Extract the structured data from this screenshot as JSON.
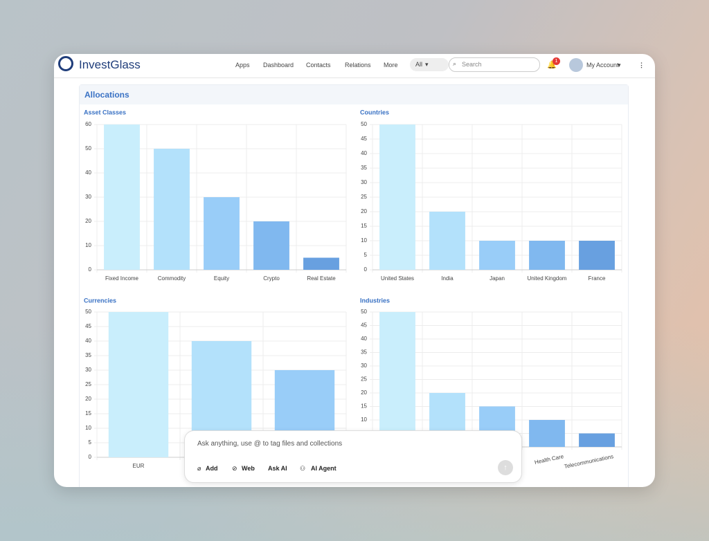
{
  "app": {
    "logo": "InvestGlass",
    "nav": [
      "Apps",
      "Dashboard",
      "Contacts",
      "Relations",
      "More"
    ],
    "filter": "All",
    "search_placeholder": "Search",
    "notification_count": "1",
    "account": "My Account"
  },
  "section_title": "Allocations",
  "chart_data": [
    {
      "type": "bar",
      "title": "Asset Classes",
      "categories": [
        "Fixed Income",
        "Commodity",
        "Equity",
        "Crypto",
        "Real Estate"
      ],
      "values": [
        60,
        50,
        30,
        20,
        5
      ],
      "colors": [
        "#c9eefc",
        "#b3e1fb",
        "#99cdf8",
        "#80b8ef",
        "#68a0e0"
      ],
      "ylim": [
        0,
        60
      ],
      "yticks": [
        0,
        10,
        20,
        30,
        40,
        50,
        60
      ],
      "grid": true
    },
    {
      "type": "bar",
      "title": "Countries",
      "categories": [
        "United States",
        "India",
        "Japan",
        "United Kingdom",
        "France"
      ],
      "values": [
        50,
        20,
        10,
        10,
        10
      ],
      "colors": [
        "#c9eefc",
        "#b3e1fb",
        "#99cdf8",
        "#80b8ef",
        "#68a0e0"
      ],
      "ylim": [
        0,
        50
      ],
      "yticks": [
        0,
        5,
        10,
        15,
        20,
        25,
        30,
        35,
        40,
        45,
        50
      ],
      "grid": true
    },
    {
      "type": "bar",
      "title": "Currencies",
      "categories": [
        "EUR",
        null,
        null
      ],
      "values": [
        50,
        40,
        30
      ],
      "colors": [
        "#c9eefc",
        "#b3e1fb",
        "#99cdf8"
      ],
      "ylim": [
        0,
        50
      ],
      "yticks": [
        0,
        5,
        10,
        15,
        20,
        25,
        30,
        35,
        40,
        45,
        50
      ],
      "grid": true
    },
    {
      "type": "bar",
      "title": "Industries",
      "categories": [
        null,
        null,
        null,
        "Health Care",
        "Telecommunications"
      ],
      "values": [
        50,
        20,
        15,
        10,
        5
      ],
      "colors": [
        "#c9eefc",
        "#b3e1fb",
        "#99cdf8",
        "#80b8ef",
        "#68a0e0"
      ],
      "ylim": [
        0,
        50
      ],
      "yticks": [
        0,
        5,
        10,
        15,
        20,
        25,
        30,
        35,
        40,
        45,
        50
      ],
      "grid": true
    }
  ],
  "assistant": {
    "placeholder": "Ask anything, use @ to tag files and collections",
    "buttons": [
      "Add",
      "Web",
      "Ask AI",
      "AI Agent"
    ]
  }
}
